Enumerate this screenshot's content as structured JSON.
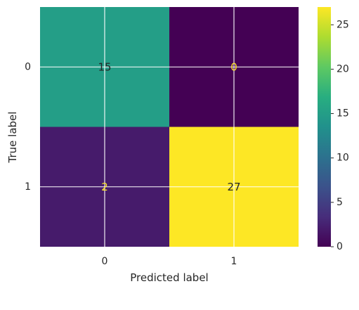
{
  "chart_data": {
    "type": "heatmap",
    "title": "",
    "xlabel": "Predicted label",
    "ylabel": "True label",
    "x_categories": [
      "0",
      "1"
    ],
    "y_categories": [
      "0",
      "1"
    ],
    "matrix": [
      [
        15,
        0
      ],
      [
        2,
        27
      ]
    ],
    "colormap": "viridis",
    "color_range": [
      0,
      27
    ],
    "grid": true,
    "colorbar": {
      "ticks": [
        0,
        5,
        10,
        15,
        20,
        25
      ],
      "tick_labels": [
        "0",
        "5",
        "10",
        "15",
        "20",
        "25"
      ]
    },
    "text_color_dark": "#262626",
    "text_color_light": "#fde725",
    "colors": {
      "low": "#440154",
      "high": "#fde725"
    }
  }
}
